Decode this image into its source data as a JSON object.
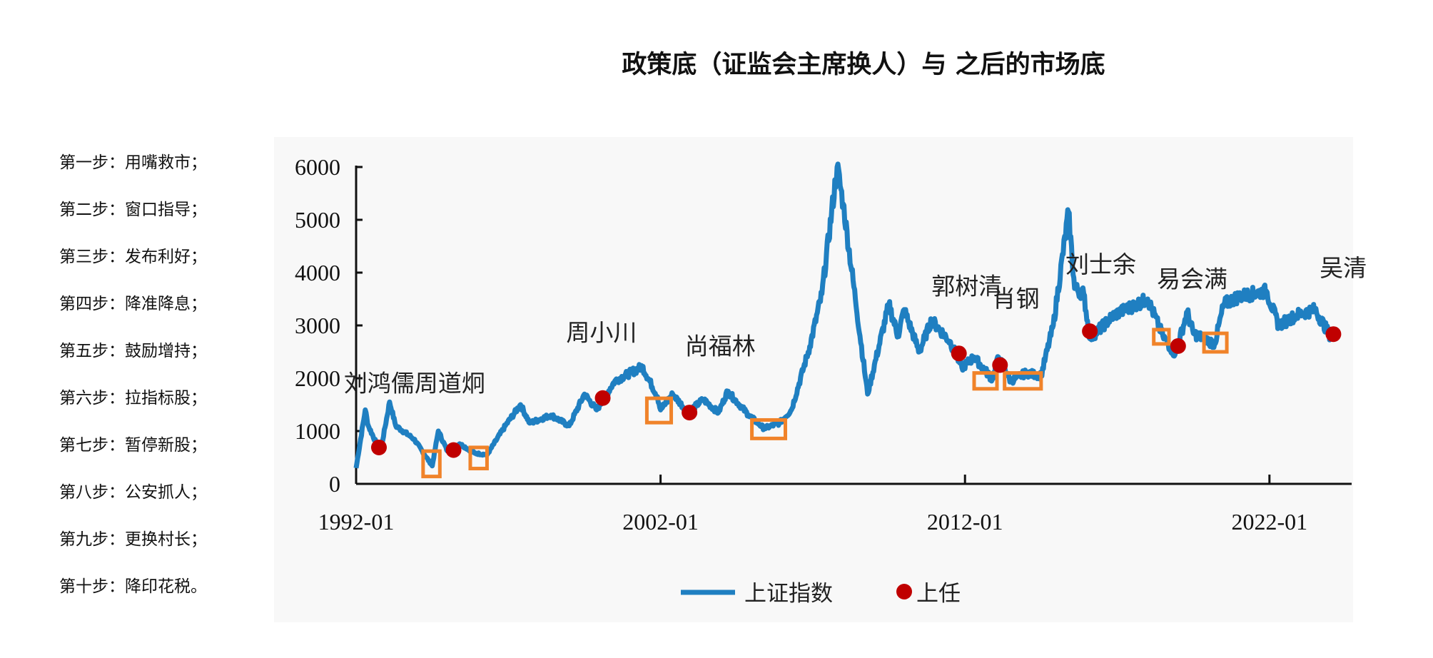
{
  "title": "政策底（证监会主席换人）与 之后的市场底",
  "steps": [
    "第一步：用嘴救市；",
    "第二步：窗口指导；",
    "第三步：发布利好；",
    "第四步：降准降息；",
    "第五步：鼓励增持；",
    "第六步：拉指标股；",
    "第七步：暂停新股；",
    "第八步：公安抓人；",
    "第九步：更换村长；",
    "第十步：降印花税。"
  ],
  "chart_data": {
    "type": "line",
    "title": "政策底（证监会主席换人）与 之后的市场底",
    "xlabel": "",
    "ylabel": "",
    "xlim": [
      1992.0,
      2024.7
    ],
    "ylim": [
      0,
      6000
    ],
    "x_ticks": [
      {
        "value": 1992,
        "label": "1992-01"
      },
      {
        "value": 2002,
        "label": "2002-01"
      },
      {
        "value": 2012,
        "label": "2012-01"
      },
      {
        "value": 2022,
        "label": "2022-01"
      }
    ],
    "y_ticks": [
      {
        "value": 0,
        "label": "0"
      },
      {
        "value": 1000,
        "label": "1000"
      },
      {
        "value": 2000,
        "label": "2000"
      },
      {
        "value": 3000,
        "label": "3000"
      },
      {
        "value": 4000,
        "label": "4000"
      },
      {
        "value": 5000,
        "label": "5000"
      },
      {
        "value": 6000,
        "label": "6000"
      }
    ],
    "legend": {
      "placement": "bottom",
      "entries": [
        {
          "label": "上证指数",
          "type": "line"
        },
        {
          "label": "上任",
          "type": "dot"
        }
      ]
    },
    "colors": {
      "line": "#1f7fc1",
      "dot": "#c00000",
      "box": "#f0832a"
    },
    "series": [
      {
        "name": "上证指数",
        "points": [
          [
            1992.0,
            300
          ],
          [
            1992.3,
            1400
          ],
          [
            1992.4,
            1100
          ],
          [
            1992.8,
            600
          ],
          [
            1993.1,
            1550
          ],
          [
            1993.3,
            1100
          ],
          [
            1993.9,
            850
          ],
          [
            1994.5,
            340
          ],
          [
            1994.7,
            1000
          ],
          [
            1995.0,
            620
          ],
          [
            1995.4,
            760
          ],
          [
            1995.9,
            580
          ],
          [
            1996.3,
            550
          ],
          [
            1996.9,
            1100
          ],
          [
            1997.4,
            1500
          ],
          [
            1997.7,
            1150
          ],
          [
            1998.4,
            1300
          ],
          [
            1999.0,
            1100
          ],
          [
            1999.5,
            1700
          ],
          [
            1999.9,
            1400
          ],
          [
            2000.5,
            1950
          ],
          [
            2001.4,
            2220
          ],
          [
            2001.9,
            1650
          ],
          [
            2002.0,
            1400
          ],
          [
            2002.4,
            1700
          ],
          [
            2002.9,
            1350
          ],
          [
            2003.4,
            1600
          ],
          [
            2003.9,
            1350
          ],
          [
            2004.2,
            1750
          ],
          [
            2004.9,
            1300
          ],
          [
            2005.4,
            1050
          ],
          [
            2005.9,
            1150
          ],
          [
            2006.3,
            1400
          ],
          [
            2006.9,
            2600
          ],
          [
            2007.3,
            3600
          ],
          [
            2007.8,
            6000
          ],
          [
            2008.0,
            5300
          ],
          [
            2008.4,
            3500
          ],
          [
            2008.8,
            1700
          ],
          [
            2009.5,
            3400
          ],
          [
            2009.8,
            2800
          ],
          [
            2010.0,
            3300
          ],
          [
            2010.5,
            2500
          ],
          [
            2010.9,
            3100
          ],
          [
            2011.5,
            2700
          ],
          [
            2011.9,
            2200
          ],
          [
            2012.3,
            2400
          ],
          [
            2012.9,
            1980
          ],
          [
            2013.1,
            2400
          ],
          [
            2013.5,
            1950
          ],
          [
            2014.0,
            2100
          ],
          [
            2014.5,
            2050
          ],
          [
            2014.9,
            3000
          ],
          [
            2015.4,
            5150
          ],
          [
            2015.6,
            3700
          ],
          [
            2015.9,
            3600
          ],
          [
            2016.1,
            2750
          ],
          [
            2016.9,
            3200
          ],
          [
            2018.0,
            3500
          ],
          [
            2018.5,
            2800
          ],
          [
            2018.9,
            2450
          ],
          [
            2019.3,
            3250
          ],
          [
            2019.5,
            2850
          ],
          [
            2020.2,
            2650
          ],
          [
            2020.5,
            3400
          ],
          [
            2021.0,
            3550
          ],
          [
            2021.9,
            3650
          ],
          [
            2022.3,
            3000
          ],
          [
            2022.9,
            3200
          ],
          [
            2023.5,
            3300
          ],
          [
            2024.0,
            2800
          ],
          [
            2024.2,
            2850
          ]
        ]
      }
    ],
    "appointments": [
      {
        "name": "刘鸿儒",
        "x": 1992.75,
        "y": 690
      },
      {
        "name": "周道炯",
        "x": 1995.2,
        "y": 640
      },
      {
        "name": "周小川",
        "x": 2000.1,
        "y": 1625
      },
      {
        "name": "尚福林",
        "x": 2002.95,
        "y": 1350
      },
      {
        "name": "郭树清",
        "x": 2011.8,
        "y": 2470
      },
      {
        "name": "肖钢",
        "x": 2013.15,
        "y": 2250
      },
      {
        "name": "刘士余",
        "x": 2016.1,
        "y": 2890
      },
      {
        "name": "易会满",
        "x": 2019.0,
        "y": 2610
      },
      {
        "name": "吴清",
        "x": 2024.1,
        "y": 2835
      }
    ],
    "name_labels": [
      {
        "text": "刘鸿儒周道炯",
        "x": 1991.6,
        "y": 1750
      },
      {
        "text": "周小川",
        "x": 1998.9,
        "y": 2710
      },
      {
        "text": "尚福林",
        "x": 2002.8,
        "y": 2450
      },
      {
        "text": "郭树清",
        "x": 2010.9,
        "y": 3590
      },
      {
        "text": "肖钢",
        "x": 2012.9,
        "y": 3350
      },
      {
        "text": "刘士余",
        "x": 2015.3,
        "y": 4000
      },
      {
        "text": "易会满",
        "x": 2018.3,
        "y": 3720
      },
      {
        "text": "吴清",
        "x": 2023.65,
        "y": 3930
      }
    ],
    "market_bottom_boxes": [
      {
        "x": [
          1994.2,
          1994.75
        ],
        "y": [
          140,
          620
        ]
      },
      {
        "x": [
          1995.75,
          1996.3
        ],
        "y": [
          290,
          690
        ]
      },
      {
        "x": [
          2001.55,
          2002.35
        ],
        "y": [
          1160,
          1620
        ]
      },
      {
        "x": [
          2005.0,
          2006.1
        ],
        "y": [
          860,
          1210
        ]
      },
      {
        "x": [
          2012.3,
          2013.05
        ],
        "y": [
          1800,
          2100
        ]
      },
      {
        "x": [
          2013.3,
          2014.5
        ],
        "y": [
          1800,
          2100
        ]
      },
      {
        "x": [
          2018.2,
          2018.7
        ],
        "y": [
          2650,
          2920
        ]
      },
      {
        "x": [
          2019.85,
          2020.6
        ],
        "y": [
          2500,
          2850
        ]
      }
    ]
  }
}
